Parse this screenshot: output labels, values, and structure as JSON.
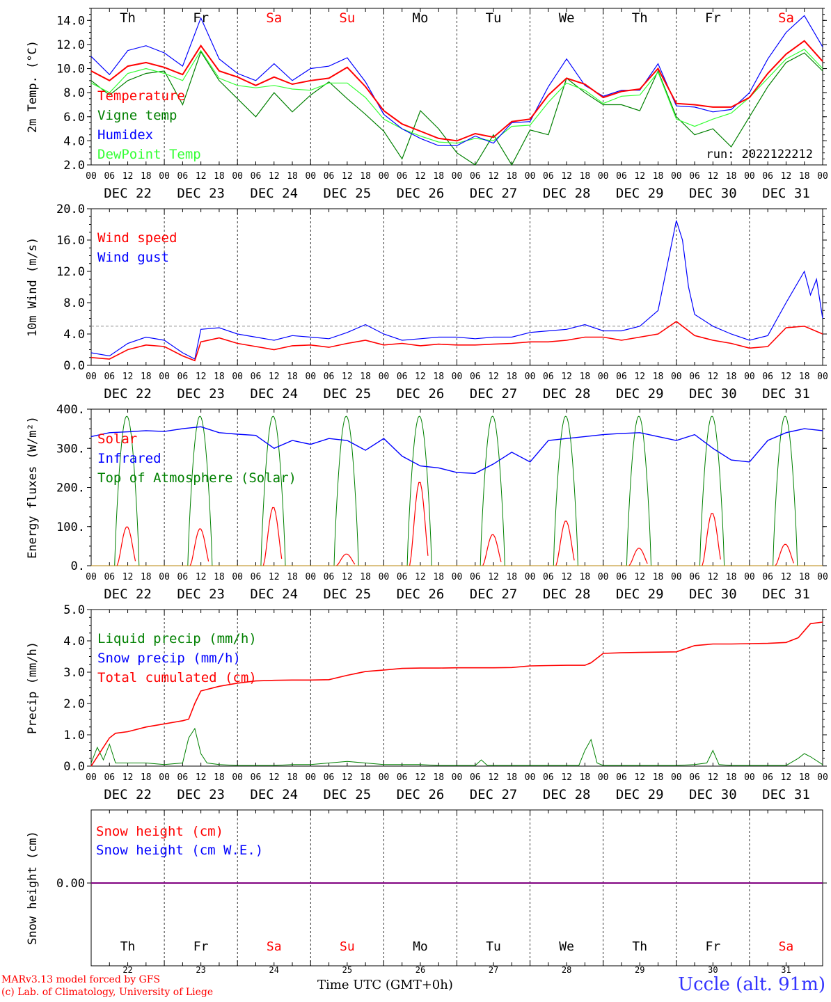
{
  "meta": {
    "run_label": "run: 2022122212",
    "location": "Uccle (alt. 91m)",
    "credit_line1": "MARv3.13 model forced by GFS",
    "credit_line2": "(c) Lab. of Climatology, University of Liege",
    "time_axis_label": "Time UTC (GMT+0h)"
  },
  "days": {
    "weekday_labels": [
      "Th",
      "Fr",
      "Sa",
      "Su",
      "Mo",
      "Tu",
      "We",
      "Th",
      "Fr",
      "Sa"
    ],
    "weekend_flags": [
      false,
      false,
      true,
      true,
      false,
      false,
      false,
      false,
      false,
      true
    ],
    "date_labels": [
      "DEC 22",
      "DEC 23",
      "DEC 24",
      "DEC 25",
      "DEC 26",
      "DEC 27",
      "DEC 28",
      "DEC 29",
      "DEC 30",
      "DEC 31"
    ],
    "day_numbers": [
      "22",
      "23",
      "24",
      "25",
      "26",
      "27",
      "28",
      "29",
      "30",
      "31"
    ],
    "hour_ticks": [
      "00",
      "06",
      "12",
      "18"
    ],
    "final_tick": "00"
  },
  "colors": {
    "red": "#ff0000",
    "green": "#008000",
    "blue": "#0000ff",
    "lightgreen": "#33ff33",
    "purple": "#800080",
    "weekend": "#ff0000"
  },
  "chart_data": [
    {
      "type": "line",
      "ylabel": "2m Temp. (°C)",
      "ylim": [
        2,
        15
      ],
      "yticks": [
        "2.0",
        "4.0",
        "6.0",
        "8.0",
        "10.0",
        "12.0",
        "14.0"
      ],
      "ytick_values": [
        2,
        4,
        6,
        8,
        10,
        12,
        14
      ],
      "x_unit": "hours since DEC 22 00 UTC",
      "series": [
        {
          "name": "Temperature",
          "color": "#ff0000",
          "x": [
            0,
            6,
            12,
            18,
            24,
            30,
            36,
            42,
            48,
            54,
            60,
            66,
            72,
            78,
            84,
            90,
            96,
            102,
            108,
            114,
            120,
            126,
            132,
            138,
            144,
            150,
            156,
            162,
            168,
            174,
            180,
            186,
            192,
            198,
            204,
            210,
            216,
            222,
            228,
            234,
            240
          ],
          "y": [
            9.8,
            9.0,
            10.2,
            10.5,
            10.1,
            9.5,
            11.9,
            9.8,
            9.3,
            8.6,
            9.3,
            8.7,
            9.0,
            9.2,
            10.1,
            8.5,
            6.5,
            5.4,
            4.8,
            4.2,
            4.0,
            4.6,
            4.3,
            5.6,
            5.8,
            7.8,
            9.2,
            8.7,
            7.6,
            8.1,
            8.3,
            10.0,
            7.1,
            7.0,
            6.8,
            6.8,
            7.6,
            9.6,
            11.2,
            12.3,
            10.6
          ]
        },
        {
          "name": "Vigne temp",
          "color": "#008000",
          "x": [
            0,
            6,
            12,
            18,
            24,
            30,
            36,
            42,
            48,
            54,
            60,
            66,
            72,
            78,
            84,
            90,
            96,
            102,
            108,
            114,
            120,
            126,
            132,
            138,
            144,
            150,
            156,
            162,
            168,
            174,
            180,
            186,
            192,
            198,
            204,
            210,
            216,
            222,
            228,
            234,
            240
          ],
          "y": [
            9.0,
            7.8,
            9.0,
            9.6,
            9.8,
            7.0,
            11.4,
            9.0,
            7.5,
            6.0,
            8.0,
            6.4,
            7.8,
            8.9,
            7.5,
            6.2,
            4.8,
            2.5,
            6.5,
            5.0,
            3.0,
            2.0,
            4.5,
            2.0,
            4.9,
            4.5,
            9.2,
            8.0,
            7.0,
            7.0,
            6.5,
            9.8,
            6.0,
            4.5,
            5.0,
            3.5,
            6.0,
            8.5,
            10.5,
            11.3,
            9.8
          ]
        },
        {
          "name": "Humidex",
          "color": "#0000ff",
          "x": [
            0,
            6,
            12,
            18,
            24,
            30,
            36,
            42,
            48,
            54,
            60,
            66,
            72,
            78,
            84,
            90,
            96,
            102,
            108,
            114,
            120,
            126,
            132,
            138,
            144,
            150,
            156,
            162,
            168,
            174,
            180,
            186,
            192,
            198,
            204,
            210,
            216,
            222,
            228,
            234,
            240
          ],
          "y": [
            11.0,
            9.5,
            11.5,
            11.9,
            11.3,
            10.2,
            14.2,
            10.8,
            9.6,
            9.0,
            10.4,
            9.0,
            10.0,
            10.2,
            10.9,
            8.9,
            6.2,
            5.0,
            4.2,
            3.6,
            3.6,
            4.4,
            3.8,
            5.5,
            5.6,
            8.5,
            10.8,
            8.6,
            7.7,
            8.2,
            8.2,
            10.4,
            6.9,
            6.8,
            6.4,
            6.6,
            8.0,
            10.8,
            13.0,
            14.4,
            11.8
          ]
        },
        {
          "name": "DewPoint Temp",
          "color": "#33ff33",
          "x": [
            0,
            6,
            12,
            18,
            24,
            30,
            36,
            42,
            48,
            54,
            60,
            66,
            72,
            78,
            84,
            90,
            96,
            102,
            108,
            114,
            120,
            126,
            132,
            138,
            144,
            150,
            156,
            162,
            168,
            174,
            180,
            186,
            192,
            198,
            204,
            210,
            216,
            222,
            228,
            234,
            240
          ],
          "y": [
            8.8,
            8.0,
            9.6,
            10.0,
            9.6,
            9.0,
            11.5,
            9.2,
            8.6,
            8.4,
            8.6,
            8.3,
            8.2,
            8.8,
            8.8,
            7.6,
            5.8,
            5.0,
            4.4,
            3.9,
            3.8,
            4.2,
            4.0,
            5.2,
            5.3,
            7.2,
            8.8,
            8.2,
            7.1,
            7.7,
            7.8,
            9.7,
            5.8,
            5.2,
            5.8,
            6.3,
            7.6,
            9.2,
            10.8,
            11.6,
            10.0
          ]
        }
      ]
    },
    {
      "type": "line",
      "ylabel": "10m Wind (m/s)",
      "ylim": [
        0,
        20
      ],
      "yticks": [
        "0.0",
        "4.0",
        "8.0",
        "12.0",
        "16.0",
        "20.0"
      ],
      "ytick_values": [
        0,
        4,
        8,
        12,
        16,
        20
      ],
      "reference_line": 5,
      "series": [
        {
          "name": "Wind speed",
          "color": "#ff0000",
          "x": [
            0,
            6,
            12,
            18,
            24,
            30,
            34,
            36,
            42,
            48,
            54,
            60,
            66,
            72,
            78,
            84,
            90,
            96,
            102,
            108,
            114,
            120,
            126,
            132,
            138,
            144,
            150,
            156,
            162,
            168,
            174,
            180,
            186,
            192,
            198,
            204,
            210,
            216,
            222,
            228,
            234,
            240
          ],
          "y": [
            1.0,
            0.8,
            2.0,
            2.6,
            2.4,
            1.2,
            0.6,
            3.0,
            3.5,
            2.8,
            2.4,
            2.0,
            2.5,
            2.6,
            2.3,
            2.8,
            3.2,
            2.6,
            2.8,
            2.5,
            2.7,
            2.6,
            2.6,
            2.7,
            2.8,
            3.0,
            3.0,
            3.2,
            3.6,
            3.6,
            3.2,
            3.6,
            4.0,
            5.6,
            3.8,
            3.2,
            2.8,
            2.2,
            2.4,
            4.8,
            5.0,
            4.0
          ]
        },
        {
          "name": "Wind gust",
          "color": "#0000ff",
          "x": [
            0,
            6,
            12,
            18,
            24,
            30,
            34,
            36,
            42,
            48,
            54,
            60,
            66,
            72,
            78,
            84,
            90,
            96,
            102,
            108,
            114,
            120,
            126,
            132,
            138,
            144,
            150,
            156,
            162,
            168,
            174,
            180,
            186,
            192,
            194,
            196,
            198,
            204,
            210,
            216,
            222,
            228,
            234,
            236,
            238,
            240
          ],
          "y": [
            1.6,
            1.2,
            2.8,
            3.6,
            3.2,
            1.6,
            0.8,
            4.6,
            4.8,
            4.0,
            3.6,
            3.2,
            3.8,
            3.6,
            3.4,
            4.2,
            5.2,
            4.0,
            3.2,
            3.4,
            3.6,
            3.6,
            3.4,
            3.6,
            3.6,
            4.2,
            4.4,
            4.6,
            5.2,
            4.4,
            4.4,
            5.0,
            7.0,
            18.5,
            16.0,
            10.0,
            6.5,
            5.0,
            4.0,
            3.2,
            3.8,
            8.0,
            12.0,
            9.0,
            11.0,
            6.0
          ]
        }
      ]
    },
    {
      "type": "line",
      "ylabel": "Energy fluxes (W/m²)",
      "ylim": [
        0,
        400
      ],
      "yticks": [
        "0.",
        "100.",
        "200.",
        "300.",
        "400."
      ],
      "ytick_values": [
        0,
        100,
        200,
        300,
        400
      ],
      "daily_top_of_atmosphere_peak": 382,
      "daily_solar_peak": [
        100,
        95,
        150,
        30,
        215,
        80,
        115,
        45,
        135,
        55
      ],
      "series": [
        {
          "name": "Solar",
          "color": "#ff0000"
        },
        {
          "name": "Infrared",
          "color": "#0000ff",
          "x": [
            0,
            6,
            12,
            18,
            24,
            30,
            36,
            42,
            48,
            54,
            60,
            66,
            72,
            78,
            84,
            90,
            96,
            102,
            108,
            114,
            120,
            126,
            132,
            138,
            144,
            150,
            156,
            162,
            168,
            174,
            180,
            186,
            192,
            198,
            204,
            210,
            216,
            222,
            228,
            234,
            240
          ],
          "y": [
            330,
            340,
            342,
            345,
            343,
            350,
            355,
            340,
            336,
            333,
            300,
            320,
            310,
            325,
            320,
            295,
            325,
            280,
            255,
            250,
            238,
            236,
            260,
            290,
            265,
            320,
            325,
            330,
            335,
            338,
            340,
            330,
            320,
            335,
            300,
            270,
            265,
            320,
            340,
            350,
            345
          ]
        },
        {
          "name": "Top of Atmosphere (Solar)",
          "color": "#008000"
        }
      ]
    },
    {
      "type": "line",
      "ylabel": "Precip (mm/h)",
      "ylim": [
        0,
        5
      ],
      "yticks": [
        "0.0",
        "1.0",
        "2.0",
        "3.0",
        "4.0",
        "5.0"
      ],
      "ytick_values": [
        0,
        1,
        2,
        3,
        4,
        5
      ],
      "series": [
        {
          "name": "Liquid precip (mm/h)",
          "color": "#008000",
          "x": [
            0,
            2,
            4,
            6,
            8,
            10,
            12,
            18,
            24,
            30,
            32,
            34,
            36,
            38,
            42,
            48,
            54,
            60,
            66,
            72,
            78,
            84,
            90,
            96,
            102,
            108,
            114,
            120,
            126,
            128,
            130,
            132,
            138,
            144,
            150,
            156,
            160,
            162,
            164,
            166,
            168,
            174,
            180,
            186,
            192,
            198,
            202,
            204,
            206,
            210,
            216,
            222,
            228,
            232,
            234,
            236,
            240
          ],
          "y": [
            0.1,
            0.6,
            0.2,
            0.7,
            0.1,
            0.1,
            0.1,
            0.1,
            0.05,
            0.1,
            0.9,
            1.2,
            0.4,
            0.1,
            0.05,
            0.02,
            0.02,
            0.02,
            0.05,
            0.05,
            0.1,
            0.15,
            0.1,
            0.05,
            0.05,
            0.05,
            0.02,
            0.02,
            0.02,
            0.2,
            0.02,
            0.02,
            0.02,
            0.02,
            0.02,
            0.02,
            0.02,
            0.5,
            0.85,
            0.1,
            0.02,
            0.02,
            0.02,
            0.02,
            0.02,
            0.05,
            0.1,
            0.5,
            0.05,
            0.02,
            0.02,
            0.02,
            0.02,
            0.25,
            0.4,
            0.3,
            0.05
          ]
        },
        {
          "name": "Snow precip (mm/h)",
          "color": "#0000ff"
        },
        {
          "name": "Total cumulated (cm)",
          "color": "#ff0000",
          "x": [
            0,
            2,
            4,
            6,
            8,
            12,
            18,
            24,
            30,
            32,
            34,
            36,
            42,
            48,
            54,
            60,
            66,
            72,
            78,
            84,
            90,
            96,
            102,
            108,
            114,
            120,
            126,
            132,
            138,
            144,
            150,
            156,
            162,
            164,
            168,
            174,
            180,
            186,
            192,
            198,
            204,
            210,
            216,
            222,
            228,
            232,
            236,
            240
          ],
          "y": [
            0,
            0.3,
            0.6,
            0.9,
            1.05,
            1.1,
            1.25,
            1.35,
            1.45,
            1.5,
            2.0,
            2.4,
            2.55,
            2.65,
            2.72,
            2.74,
            2.75,
            2.75,
            2.76,
            2.9,
            3.02,
            3.07,
            3.12,
            3.13,
            3.13,
            3.14,
            3.14,
            3.14,
            3.15,
            3.2,
            3.21,
            3.22,
            3.22,
            3.3,
            3.6,
            3.62,
            3.63,
            3.64,
            3.65,
            3.85,
            3.9,
            3.9,
            3.91,
            3.92,
            3.95,
            4.1,
            4.55,
            4.6
          ]
        }
      ]
    },
    {
      "type": "line",
      "ylabel": "Snow height (cm)",
      "yticks": [
        "0.00"
      ],
      "series": [
        {
          "name": "Snow height (cm)",
          "color": "#ff0000",
          "value": 0
        },
        {
          "name": "Snow height (cm W.E.)",
          "color": "#0000ff",
          "value": 0
        }
      ]
    }
  ]
}
